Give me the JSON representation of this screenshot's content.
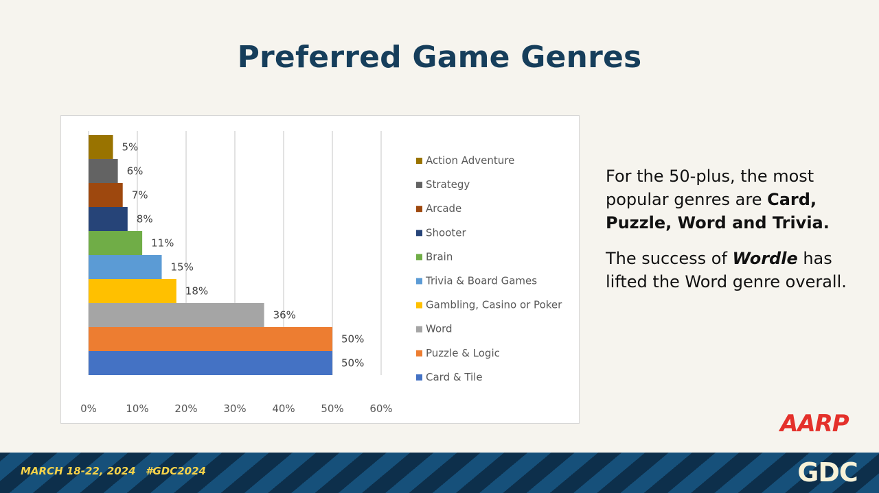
{
  "slide": {
    "title": "Preferred Game Genres",
    "paragraph1_pre": "For the 50-plus, the most popular genres are ",
    "paragraph1_bold": "Card, Puzzle, Word and Trivia.",
    "paragraph2_pre": "The success of ",
    "paragraph2_italic": "Wordle",
    "paragraph2_post": " has lifted the Word genre overall."
  },
  "footer": {
    "dates": "MARCH 18-22, 2024",
    "hashtag": "#GDC2024",
    "gdc_logo": "GDC",
    "aarp_logo": "AARP"
  },
  "chart_data": {
    "type": "bar",
    "orientation": "horizontal",
    "categories": [
      "Card & Tile",
      "Puzzle & Logic",
      "Word",
      "Gambling, Casino or Poker",
      "Trivia & Board Games",
      "Brain",
      "Shooter",
      "Arcade",
      "Strategy",
      "Action Adventure"
    ],
    "values": [
      50,
      50,
      36,
      18,
      15,
      11,
      8,
      7,
      6,
      5
    ],
    "labels": [
      "50%",
      "50%",
      "36%",
      "18%",
      "15%",
      "11%",
      "8%",
      "7%",
      "6%",
      "5%"
    ],
    "colors": [
      "#4472c4",
      "#ed7d31",
      "#a5a5a5",
      "#ffc000",
      "#5b9bd5",
      "#70ad47",
      "#264478",
      "#9e480e",
      "#636363",
      "#997300"
    ],
    "xticks": [
      "0%",
      "10%",
      "20%",
      "30%",
      "40%",
      "50%",
      "60%"
    ],
    "xlim": [
      0,
      60
    ],
    "grid": true,
    "legend": [
      "Action Adventure",
      "Strategy",
      "Arcade",
      "Shooter",
      "Brain",
      "Trivia & Board Games",
      "Gambling, Casino or Poker",
      "Word",
      "Puzzle & Logic",
      "Card & Tile"
    ],
    "legend_position": "right"
  }
}
